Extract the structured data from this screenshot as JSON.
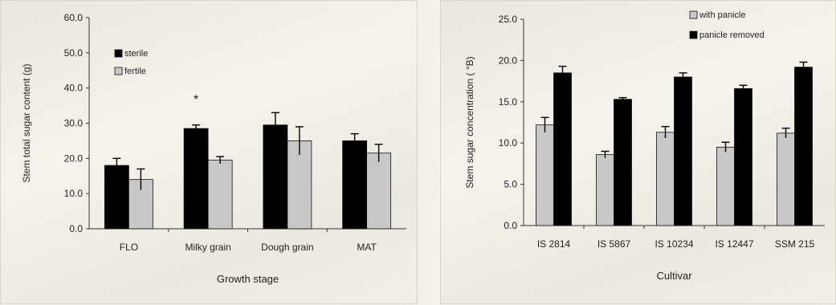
{
  "chart_data": [
    {
      "type": "bar",
      "title": "",
      "xlabel": "Growth stage",
      "ylabel": "Stem total sugar content (g)",
      "ylim": [
        0,
        60
      ],
      "ytick_labels": [
        "0.0",
        "10.0",
        "20.0",
        "30.0",
        "40.0",
        "50.0",
        "60.0"
      ],
      "categories": [
        "FLO",
        "Milky grain",
        "Dough grain",
        "MAT"
      ],
      "series": [
        {
          "name": "sterile",
          "color": "#000000",
          "values": [
            18.0,
            28.5,
            29.5,
            25.0
          ],
          "errors": [
            2.0,
            1.0,
            3.5,
            2.0
          ]
        },
        {
          "name": "fertile",
          "color": "#c8c8c8",
          "values": [
            14.0,
            19.5,
            25.0,
            21.5
          ],
          "errors": [
            3.0,
            1.0,
            4.0,
            2.5
          ]
        }
      ],
      "annotations": [
        {
          "text": "*",
          "category": "Milky grain",
          "value": 37
        }
      ],
      "legend": "top-left",
      "grid": false
    },
    {
      "type": "bar",
      "title": "",
      "xlabel": "Cultivar",
      "ylabel": "Stem sugar concentration ( °B)",
      "ylim": [
        0,
        25
      ],
      "ytick_labels": [
        "0.0",
        "5.0",
        "10.0",
        "15.0",
        "20.0",
        "25.0"
      ],
      "categories": [
        "IS 2814",
        "IS 5867",
        "IS 10234",
        "IS 12447",
        "SSM 215"
      ],
      "series": [
        {
          "name": "with panicle",
          "color": "#c8c8c8",
          "values": [
            12.2,
            8.6,
            11.3,
            9.5,
            11.2
          ],
          "errors": [
            0.9,
            0.4,
            0.7,
            0.6,
            0.6
          ]
        },
        {
          "name": "panicle removed",
          "color": "#000000",
          "values": [
            18.5,
            15.3,
            18.0,
            16.6,
            19.2
          ],
          "errors": [
            0.8,
            0.2,
            0.5,
            0.4,
            0.6
          ]
        }
      ],
      "legend": "top",
      "grid": false
    }
  ]
}
